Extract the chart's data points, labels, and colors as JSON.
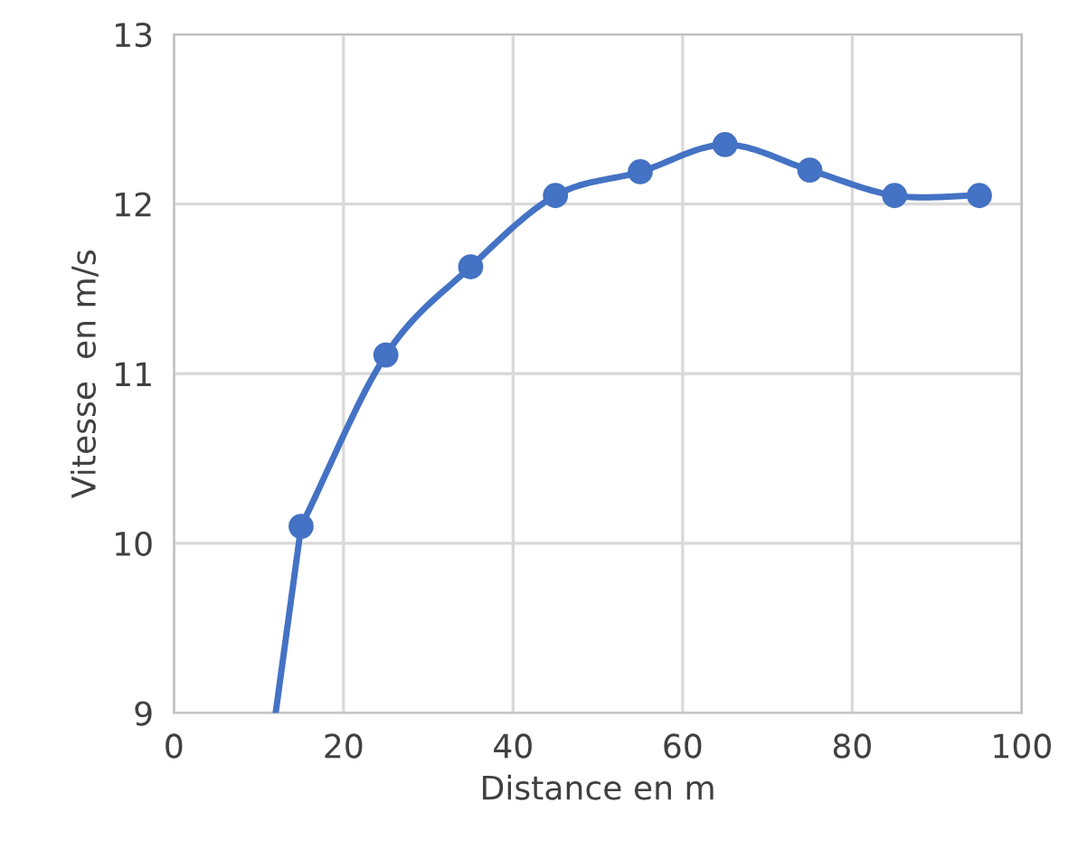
{
  "chart_data": {
    "type": "line",
    "xlabel": "Distance en m",
    "ylabel": "Vitesse  en m/s",
    "series": [
      {
        "color": "#4472c4",
        "x": [
          15,
          25,
          35,
          45,
          55,
          65,
          75,
          85,
          95
        ],
        "values": [
          10.1,
          11.11,
          11.63,
          12.05,
          12.19,
          12.35,
          12.2,
          12.05,
          12.05
        ],
        "marker": "circle"
      },
      {
        "color": "#4472c4",
        "x": [
          12,
          15
        ],
        "values": [
          9,
          10.1
        ],
        "marker": "none"
      }
    ],
    "xlim": [
      0,
      100
    ],
    "xticks": [
      0,
      20,
      40,
      60,
      80,
      100
    ],
    "ylim": [
      9,
      13
    ],
    "yticks": [
      9,
      10,
      11,
      12,
      13
    ],
    "grid": true,
    "line_style": "solid",
    "legend": false
  }
}
